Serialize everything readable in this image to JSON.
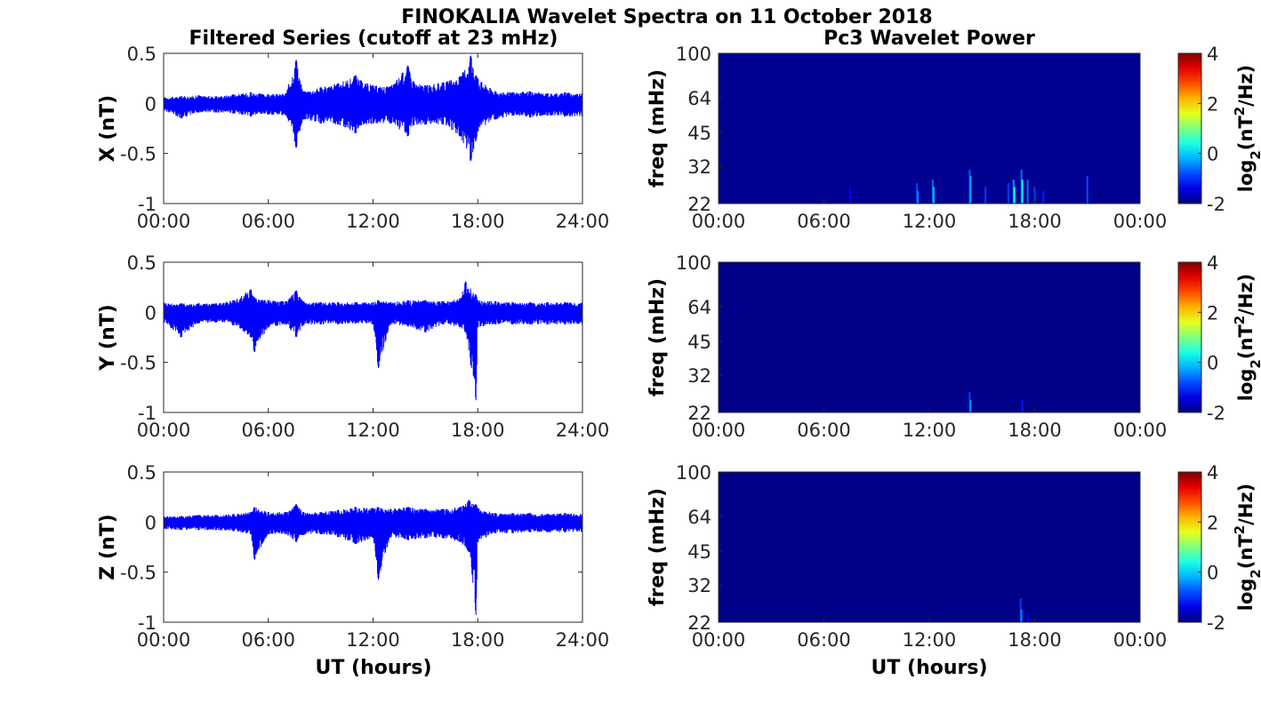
{
  "figure": {
    "title": "FINOKALIA Wavelet Spectra on 11 October 2018",
    "left_title": "Filtered Series (cutoff at 23 mHz)",
    "right_title": "Pc3 Wavelet Power",
    "xlabel": "UT (hours)"
  },
  "chart_data": [
    {
      "type": "line",
      "component": "X",
      "ylabel": "X (nT)",
      "color": "#0000ff",
      "xlim": [
        0,
        24
      ],
      "ylim": [
        -1,
        0.5
      ],
      "xticks": [
        "00:00",
        "06:00",
        "12:00",
        "18:00",
        "24:00"
      ],
      "yticks": [
        "0.5",
        "0",
        "-0.5",
        "-1"
      ],
      "x": [
        0,
        1,
        2,
        3,
        4,
        5,
        6,
        7,
        7.6,
        8,
        9,
        10,
        11,
        11.3,
        12,
        13,
        14,
        14.3,
        15,
        16,
        17,
        17.6,
        17.9,
        18,
        19,
        20,
        21,
        22,
        23,
        24
      ],
      "max": [
        0.06,
        0.07,
        0.08,
        0.07,
        0.09,
        0.11,
        0.09,
        0.1,
        0.44,
        0.12,
        0.16,
        0.2,
        0.28,
        0.23,
        0.18,
        0.17,
        0.38,
        0.22,
        0.18,
        0.21,
        0.27,
        0.48,
        0.28,
        0.25,
        0.12,
        0.11,
        0.12,
        0.1,
        0.11,
        0.1
      ],
      "min": [
        -0.07,
        -0.15,
        -0.09,
        -0.09,
        -0.1,
        -0.13,
        -0.11,
        -0.12,
        -0.45,
        -0.16,
        -0.2,
        -0.21,
        -0.3,
        -0.22,
        -0.2,
        -0.2,
        -0.33,
        -0.22,
        -0.21,
        -0.21,
        -0.33,
        -0.58,
        -0.38,
        -0.28,
        -0.16,
        -0.12,
        -0.14,
        -0.12,
        -0.13,
        -0.13
      ]
    },
    {
      "type": "line",
      "component": "Y",
      "ylabel": "Y (nT)",
      "color": "#0000ff",
      "xlim": [
        0,
        24
      ],
      "ylim": [
        -1,
        0.5
      ],
      "xticks": [
        "00:00",
        "06:00",
        "12:00",
        "18:00",
        "24:00"
      ],
      "yticks": [
        "0.5",
        "0",
        "-0.5",
        "-1"
      ],
      "x": [
        0,
        1,
        2,
        3,
        4,
        5,
        5.2,
        6,
        7,
        7.6,
        8,
        9,
        10,
        11,
        12,
        12.3,
        13,
        14,
        15,
        16,
        17,
        17.3,
        17.9,
        18,
        19,
        20,
        21,
        22,
        23,
        24
      ],
      "max": [
        0.1,
        0.09,
        0.09,
        0.09,
        0.12,
        0.23,
        0.15,
        0.12,
        0.11,
        0.22,
        0.11,
        0.1,
        0.1,
        0.1,
        0.1,
        0.12,
        0.1,
        0.12,
        0.12,
        0.11,
        0.14,
        0.31,
        0.18,
        0.12,
        0.11,
        0.1,
        0.1,
        0.1,
        0.1,
        0.1
      ],
      "min": [
        -0.1,
        -0.25,
        -0.11,
        -0.1,
        -0.13,
        -0.25,
        -0.4,
        -0.15,
        -0.12,
        -0.25,
        -0.13,
        -0.12,
        -0.12,
        -0.11,
        -0.12,
        -0.56,
        -0.12,
        -0.14,
        -0.2,
        -0.12,
        -0.15,
        -0.2,
        -0.88,
        -0.15,
        -0.12,
        -0.12,
        -0.12,
        -0.12,
        -0.12,
        -0.12
      ]
    },
    {
      "type": "line",
      "component": "Z",
      "ylabel": "Z (nT)",
      "color": "#0000ff",
      "xlim": [
        0,
        24
      ],
      "ylim": [
        -1,
        0.5
      ],
      "xticks": [
        "00:00",
        "06:00",
        "12:00",
        "18:00",
        "24:00"
      ],
      "yticks": [
        "0.5",
        "0",
        "-0.5",
        "-1"
      ],
      "x": [
        0,
        1,
        2,
        3,
        4,
        5,
        5.2,
        6,
        7,
        7.6,
        8,
        9,
        10,
        11,
        12,
        12.3,
        13,
        14,
        15,
        16,
        17,
        17.5,
        17.9,
        18,
        19,
        20,
        21,
        22,
        23,
        24
      ],
      "max": [
        0.06,
        0.06,
        0.07,
        0.07,
        0.08,
        0.1,
        0.15,
        0.1,
        0.1,
        0.18,
        0.1,
        0.1,
        0.12,
        0.15,
        0.14,
        0.15,
        0.13,
        0.15,
        0.13,
        0.13,
        0.15,
        0.22,
        0.18,
        0.14,
        0.09,
        0.09,
        0.09,
        0.08,
        0.09,
        0.08
      ],
      "min": [
        -0.07,
        -0.08,
        -0.08,
        -0.08,
        -0.09,
        -0.12,
        -0.38,
        -0.12,
        -0.12,
        -0.2,
        -0.13,
        -0.12,
        -0.15,
        -0.22,
        -0.16,
        -0.58,
        -0.15,
        -0.18,
        -0.16,
        -0.16,
        -0.2,
        -0.3,
        -0.93,
        -0.2,
        -0.11,
        -0.11,
        -0.1,
        -0.1,
        -0.1,
        -0.1
      ]
    },
    {
      "type": "heatmap",
      "component": "X",
      "title": "Pc3 Wavelet Power",
      "ylabel": "freq (mHz)",
      "colorbar_label": "log2(nT2/Hz)",
      "colorscale": "jet",
      "clim": [
        -2,
        4
      ],
      "colorbar_ticks": [
        "4",
        "2",
        "0",
        "-2"
      ],
      "xlim": [
        0,
        24
      ],
      "xticks": [
        "00:00",
        "06:00",
        "12:00",
        "18:00",
        "00:00"
      ],
      "yticks": [
        "100",
        "64",
        "45",
        "32",
        "22"
      ],
      "ylim": [
        22,
        100
      ],
      "yscale": "log",
      "background": -1.9,
      "bursts": [
        {
          "t": 7.5,
          "fmax": 26,
          "value": -1.3
        },
        {
          "t": 11.3,
          "fmax": 27,
          "value": -0.8
        },
        {
          "t": 11.35,
          "fmax": 25,
          "value": -0.5
        },
        {
          "t": 12.2,
          "fmax": 28,
          "value": -0.6
        },
        {
          "t": 12.25,
          "fmax": 26,
          "value": -0.2
        },
        {
          "t": 14.3,
          "fmax": 31,
          "value": -0.7
        },
        {
          "t": 14.35,
          "fmax": 29,
          "value": -0.3
        },
        {
          "t": 15.2,
          "fmax": 26,
          "value": -0.9
        },
        {
          "t": 16.5,
          "fmax": 27,
          "value": -0.9
        },
        {
          "t": 16.8,
          "fmax": 28,
          "value": -0.4
        },
        {
          "t": 16.85,
          "fmax": 26,
          "value": 0.3
        },
        {
          "t": 17.25,
          "fmax": 31,
          "value": -0.6
        },
        {
          "t": 17.3,
          "fmax": 28,
          "value": 0.2
        },
        {
          "t": 17.6,
          "fmax": 28,
          "value": -0.6
        },
        {
          "t": 18.0,
          "fmax": 26,
          "value": -0.9
        },
        {
          "t": 18.5,
          "fmax": 25,
          "value": -1.1
        },
        {
          "t": 21.0,
          "fmax": 29,
          "value": -0.8
        }
      ]
    },
    {
      "type": "heatmap",
      "component": "Y",
      "ylabel": "freq (mHz)",
      "colorbar_label": "log2(nT2/Hz)",
      "colorscale": "jet",
      "clim": [
        -2,
        4
      ],
      "colorbar_ticks": [
        "4",
        "2",
        "0",
        "-2"
      ],
      "xlim": [
        0,
        24
      ],
      "xticks": [
        "00:00",
        "06:00",
        "12:00",
        "18:00",
        "00:00"
      ],
      "yticks": [
        "100",
        "64",
        "45",
        "32",
        "22"
      ],
      "ylim": [
        22,
        100
      ],
      "yscale": "log",
      "background": -1.95,
      "bursts": [
        {
          "t": 14.3,
          "fmax": 27,
          "value": -0.9
        },
        {
          "t": 14.35,
          "fmax": 25,
          "value": -0.4
        },
        {
          "t": 17.3,
          "fmax": 25,
          "value": -1.1
        }
      ]
    },
    {
      "type": "heatmap",
      "component": "Z",
      "ylabel": "freq (mHz)",
      "colorbar_label": "log2(nT2/Hz)",
      "colorscale": "jet",
      "clim": [
        -2,
        4
      ],
      "colorbar_ticks": [
        "4",
        "2",
        "0",
        "-2"
      ],
      "xlim": [
        0,
        24
      ],
      "xticks": [
        "00:00",
        "06:00",
        "12:00",
        "18:00",
        "00:00"
      ],
      "yticks": [
        "100",
        "64",
        "45",
        "32",
        "22"
      ],
      "ylim": [
        22,
        100
      ],
      "yscale": "log",
      "background": -1.95,
      "bursts": [
        {
          "t": 17.2,
          "fmax": 28,
          "value": -0.9
        },
        {
          "t": 17.25,
          "fmax": 25,
          "value": -0.5
        },
        {
          "t": 17.6,
          "fmax": 24,
          "value": -1.3
        }
      ]
    }
  ]
}
